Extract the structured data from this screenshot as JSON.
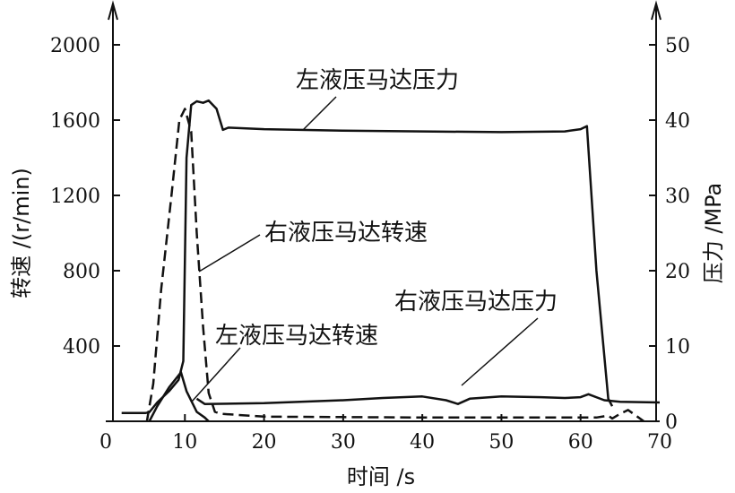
{
  "chart_data": {
    "type": "line",
    "title": "",
    "xlabel": "时间 /s",
    "ylabel_left": "转速 /(r/min)",
    "ylabel_right": "压力 /MPa",
    "xlim": [
      0,
      70
    ],
    "ylim_left": [
      0,
      2000
    ],
    "ylim_right": [
      0,
      50
    ],
    "x_ticks": [
      0,
      10,
      20,
      30,
      40,
      50,
      60,
      70
    ],
    "y_left_ticks": [
      400,
      800,
      1200,
      1600,
      2000
    ],
    "y_right_ticks": [
      0,
      10,
      20,
      30,
      40,
      50
    ],
    "grid": false,
    "legend": "none",
    "series": [
      {
        "name": "左液压马达压力",
        "axis": "right",
        "style": "solid",
        "x": [
          2,
          5,
          5.5,
          6.5,
          8,
          9.2,
          9.8,
          10.2,
          10.8,
          11.5,
          12.3,
          13,
          14,
          14.8,
          15.5,
          20,
          30,
          40,
          50,
          58,
          60,
          60.8,
          62,
          63.5,
          64
        ],
        "y": [
          1.1,
          1.1,
          1.2,
          2.5,
          4,
          5.5,
          8,
          35,
          42,
          42.5,
          42.3,
          42.6,
          41.5,
          38.7,
          39,
          38.8,
          38.6,
          38.5,
          38.4,
          38.5,
          38.8,
          39.2,
          20,
          3,
          2
        ]
      },
      {
        "name": "右液压马达转速",
        "axis": "left",
        "style": "dashed",
        "x": [
          5.2,
          6,
          7,
          8.3,
          9.3,
          10,
          10.8,
          11.5,
          12.3,
          13,
          13.8,
          14.5,
          20,
          40,
          50,
          55,
          60,
          62,
          63.5,
          64,
          65,
          66,
          67,
          68
        ],
        "y": [
          0,
          200,
          700,
          1200,
          1600,
          1660,
          1540,
          1000,
          500,
          150,
          50,
          40,
          25,
          20,
          20,
          20,
          20,
          20,
          30,
          15,
          40,
          60,
          30,
          0
        ]
      },
      {
        "name": "左液压马达转速",
        "axis": "left",
        "style": "solid",
        "x": [
          5.5,
          6.5,
          8,
          9.5,
          10.2,
          10.8,
          11.5,
          12.5,
          13
        ],
        "y": [
          0,
          80,
          180,
          260,
          160,
          110,
          50,
          20,
          0
        ]
      },
      {
        "name": "右液压马达压力",
        "axis": "right",
        "style": "solid",
        "x": [
          11.5,
          12.5,
          20,
          30,
          35,
          40,
          43,
          44.5,
          46,
          50,
          55,
          58,
          60,
          61,
          63,
          65,
          70
        ],
        "y": [
          3,
          2.3,
          2.4,
          2.8,
          3.1,
          3.3,
          2.8,
          2.3,
          3.0,
          3.3,
          3.2,
          3.1,
          3.2,
          3.6,
          2.8,
          2.6,
          2.5
        ]
      }
    ],
    "annotations": [
      {
        "text": "左液压马达压力",
        "series": "左液压马达压力"
      },
      {
        "text": "右液压马达转速",
        "series": "右液压马达转速"
      },
      {
        "text": "左液压马达转速",
        "series": "左液压马达转速"
      },
      {
        "text": "右液压马达压力",
        "series": "右液压马达压力"
      }
    ]
  }
}
